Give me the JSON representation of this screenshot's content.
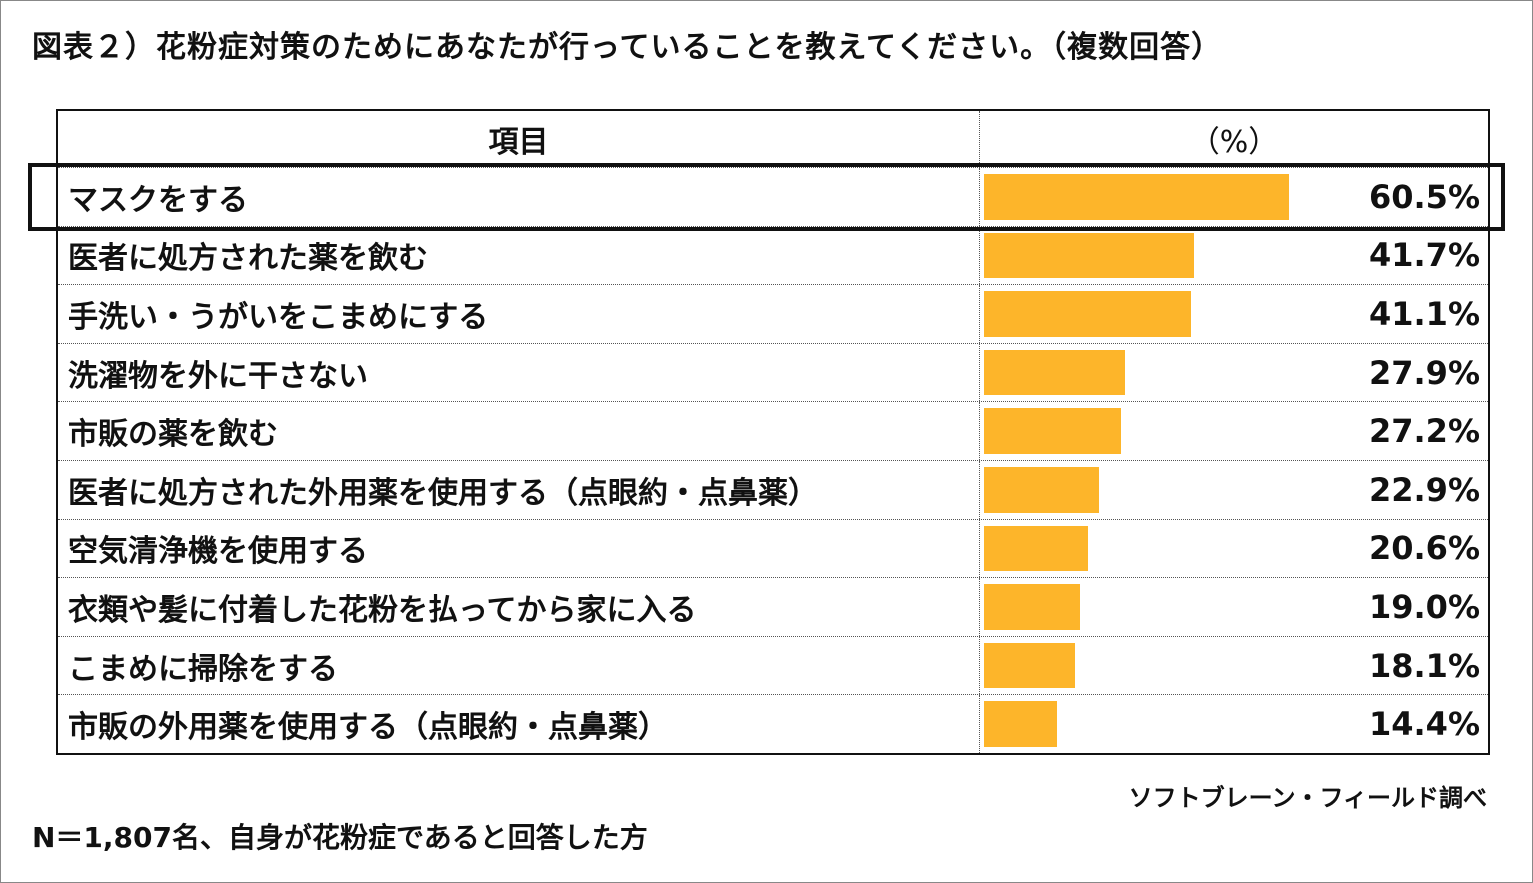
{
  "title": "図表２）花粉症対策のためにあなたが行っていることを教えてください。（複数回答）",
  "chart_data": {
    "type": "bar",
    "orientation": "horizontal",
    "title": "図表２）花粉症対策のためにあなたが行っていることを教えてください。（複数回答）",
    "column_headers": [
      "項目",
      "（%）"
    ],
    "categories": [
      "マスクをする",
      "医者に処方された薬を飲む",
      "手洗い・うがいをこまめにする",
      "洗濯物を外に干さない",
      "市販の薬を飲む",
      "医者に処方された外用薬を使用する（点眼約・点鼻薬）",
      "空気清浄機を使用する",
      "衣類や髪に付着した花粉を払ってから家に入る",
      "こまめに掃除をする",
      "市販の外用薬を使用する（点眼約・点鼻薬）"
    ],
    "values": [
      60.5,
      41.7,
      41.1,
      27.9,
      27.2,
      22.9,
      20.6,
      19.0,
      18.1,
      14.4
    ],
    "value_labels": [
      "60.5%",
      "41.7%",
      "41.1%",
      "27.9%",
      "27.2%",
      "22.9%",
      "20.6%",
      "19.0%",
      "18.1%",
      "14.4%"
    ],
    "bar_color": "#fdb52a",
    "highlighted": "マスクをする"
  },
  "source": "ソフトブレーン・フィールド調べ",
  "note": "N＝1,807名、自身が花粉症であると回答した方"
}
